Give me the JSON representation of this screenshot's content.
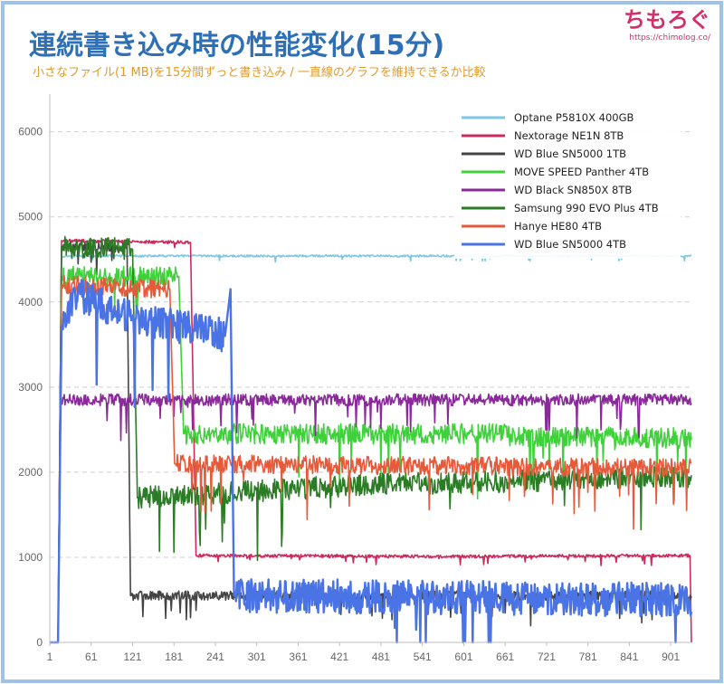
{
  "header": {
    "title": "連続書き込み時の性能変化(15分)",
    "subtitle": "小さなファイル(1 MB)を15分間ずっと書き込み / 一直線のグラフを維持できるか比較",
    "logo_text": "ちもろぐ",
    "logo_url": "https://chimolog.co/"
  },
  "colors": {
    "title": "#2f6fb5",
    "subtitle": "#e29a2c",
    "logo": "#d1306a",
    "frame": "#9ec3e6",
    "grid": "#cfcfcf"
  },
  "chart_data": {
    "type": "line",
    "title": "連続書き込み時の性能変化(15分)",
    "subtitle": "小さなファイル(1 MB)を15分間ずっと書き込み / 一直線のグラフを維持できるか比較",
    "xlabel": "",
    "ylabel": "",
    "xlim": [
      1,
      931
    ],
    "ylim": [
      0,
      6400
    ],
    "x_ticks": [
      "1",
      "61",
      "121",
      "181",
      "241",
      "301",
      "361",
      "421",
      "481",
      "541",
      "601",
      "661",
      "721",
      "781",
      "841",
      "901"
    ],
    "y_ticks": [
      "0",
      "1000",
      "2000",
      "3000",
      "4000",
      "5000",
      "6000"
    ],
    "grid": true,
    "legend_position": "top-right",
    "series": [
      {
        "name": "Optane P5810X 400GB",
        "color": "#7ec7e2",
        "points": [
          [
            1,
            0
          ],
          [
            13,
            0
          ],
          [
            18,
            4500
          ],
          [
            20,
            4540
          ],
          [
            600,
            4540
          ],
          [
            700,
            4540
          ],
          [
            931,
            4540
          ]
        ],
        "noise": 12
      },
      {
        "name": "Nextorage NE1N 8TB",
        "color": "#cc2b5e",
        "points": [
          [
            1,
            0
          ],
          [
            13,
            0
          ],
          [
            18,
            4720
          ],
          [
            205,
            4700
          ],
          [
            213,
            1020
          ],
          [
            560,
            1010
          ],
          [
            929,
            1020
          ],
          [
            931,
            0
          ]
        ],
        "noise": 18
      },
      {
        "name": "WD Blue SN5000 1TB",
        "color": "#444444",
        "points": [
          [
            1,
            0
          ],
          [
            13,
            0
          ],
          [
            18,
            4650
          ],
          [
            113,
            4640
          ],
          [
            118,
            550
          ],
          [
            931,
            550
          ]
        ],
        "noise": 55
      },
      {
        "name": "MOVE SPEED Panther 4TB",
        "color": "#3ed13a",
        "points": [
          [
            1,
            0
          ],
          [
            13,
            0
          ],
          [
            18,
            4300
          ],
          [
            188,
            4300
          ],
          [
            195,
            2450
          ],
          [
            650,
            2450
          ],
          [
            660,
            2450
          ],
          [
            670,
            2420
          ],
          [
            931,
            2400
          ]
        ],
        "noise": 120
      },
      {
        "name": "WD Black SN850X 8TB",
        "color": "#8a2a9a",
        "points": [
          [
            1,
            0
          ],
          [
            13,
            0
          ],
          [
            16,
            2850
          ],
          [
            931,
            2850
          ]
        ],
        "noise": 70
      },
      {
        "name": "Samsung 990 EVO Plus 4TB",
        "color": "#2a7d24",
        "points": [
          [
            1,
            0
          ],
          [
            13,
            0
          ],
          [
            18,
            4650
          ],
          [
            121,
            4620
          ],
          [
            128,
            1700
          ],
          [
            450,
            1850
          ],
          [
            700,
            1900
          ],
          [
            931,
            1950
          ]
        ],
        "noise": 130
      },
      {
        "name": "Hanye HE80 4TB",
        "color": "#e65a3a",
        "points": [
          [
            1,
            0
          ],
          [
            13,
            0
          ],
          [
            18,
            4200
          ],
          [
            175,
            4150
          ],
          [
            182,
            2100
          ],
          [
            931,
            2050
          ]
        ],
        "noise": 110
      },
      {
        "name": "WD Blue SN5000 4TB",
        "color": "#4a74e6",
        "points": [
          [
            1,
            0
          ],
          [
            13,
            0
          ],
          [
            18,
            3700
          ],
          [
            40,
            4100
          ],
          [
            120,
            3800
          ],
          [
            200,
            3700
          ],
          [
            255,
            3600
          ],
          [
            263,
            4150
          ],
          [
            268,
            550
          ],
          [
            931,
            500
          ]
        ],
        "noise": 200
      }
    ]
  }
}
